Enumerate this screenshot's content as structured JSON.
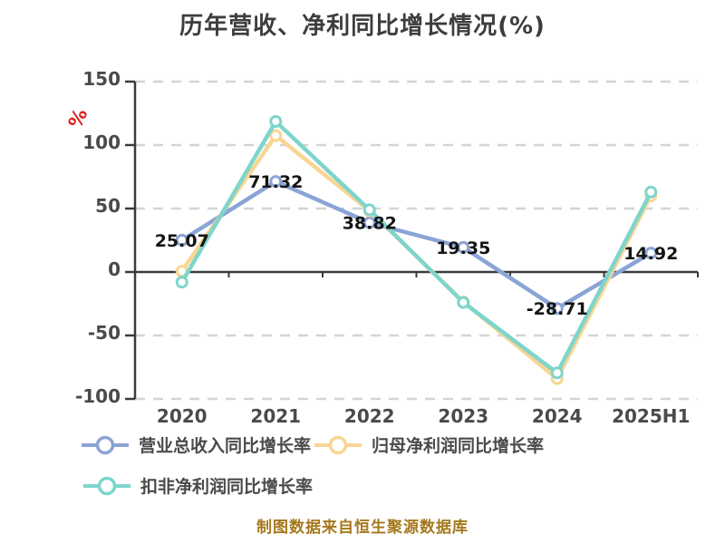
{
  "title": "历年营收、净利同比增长情况(%)",
  "footer": {
    "caption": "制图数据来自恒生聚源数据库"
  },
  "chart_data": {
    "type": "line",
    "categories": [
      "2020",
      "2021",
      "2022",
      "2023",
      "2024",
      "2025H1"
    ],
    "series": [
      {
        "name": "营业总收入同比增长率",
        "color": "#8aa4d6",
        "values": [
          25.07,
          71.32,
          38.82,
          19.35,
          -28.71,
          14.92
        ],
        "labeled": true
      },
      {
        "name": "归母净利润同比增长率",
        "color": "#f9d592",
        "values": [
          0.6,
          107.5,
          48.3,
          -23.5,
          -84.0,
          60.0
        ],
        "labeled": false
      },
      {
        "name": "扣非净利润同比增长率",
        "color": "#7ed5cc",
        "values": [
          -8.0,
          118.6,
          49.0,
          -24.0,
          -79.5,
          63.0
        ],
        "labeled": false
      }
    ],
    "ylim": [
      -100,
      150
    ],
    "yticks": [
      150,
      100,
      50,
      0,
      -50,
      -100
    ],
    "y_unit": "%",
    "y_unit_color": "#e01f1f",
    "axis_color": "#3b3b3b",
    "grid_color": "#d4d4d4",
    "grid_style": "dashed horizontal, solid dark line at zero",
    "legend_position": "bottom-left"
  }
}
